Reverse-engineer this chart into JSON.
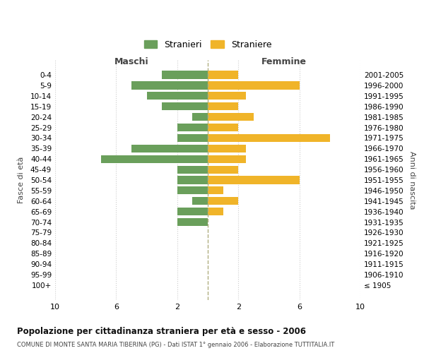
{
  "age_groups": [
    "0-4",
    "5-9",
    "10-14",
    "15-19",
    "20-24",
    "25-29",
    "30-34",
    "35-39",
    "40-44",
    "45-49",
    "50-54",
    "55-59",
    "60-64",
    "65-69",
    "70-74",
    "75-79",
    "80-84",
    "85-89",
    "90-94",
    "95-99",
    "100+"
  ],
  "birth_years": [
    "2001-2005",
    "1996-2000",
    "1991-1995",
    "1986-1990",
    "1981-1985",
    "1976-1980",
    "1971-1975",
    "1966-1970",
    "1961-1965",
    "1956-1960",
    "1951-1955",
    "1946-1950",
    "1941-1945",
    "1936-1940",
    "1931-1935",
    "1926-1930",
    "1921-1925",
    "1916-1920",
    "1911-1915",
    "1906-1910",
    "≤ 1905"
  ],
  "maschi": [
    3,
    5,
    4,
    3,
    1,
    2,
    2,
    5,
    7,
    2,
    2,
    2,
    1,
    2,
    2,
    0,
    0,
    0,
    0,
    0,
    0
  ],
  "femmine": [
    2,
    6,
    2.5,
    2,
    3,
    2,
    8,
    2.5,
    2.5,
    2,
    6,
    1,
    2,
    1,
    0,
    0,
    0,
    0,
    0,
    0,
    0
  ],
  "maschi_color": "#6a9f5b",
  "femmine_color": "#f0b429",
  "title": "Popolazione per cittadinanza straniera per età e sesso - 2006",
  "subtitle": "COMUNE DI MONTE SANTA MARIA TIBERINA (PG) - Dati ISTAT 1° gennaio 2006 - Elaborazione TUTTITALIA.IT",
  "ylabel_left": "Fasce di età",
  "ylabel_right": "Anni di nascita",
  "xlabel_left": "Maschi",
  "xlabel_top": "Femmine",
  "legend_stranieri": "Stranieri",
  "legend_straniere": "Straniere",
  "xlim": 10,
  "background_color": "#ffffff",
  "grid_color": "#cccccc"
}
